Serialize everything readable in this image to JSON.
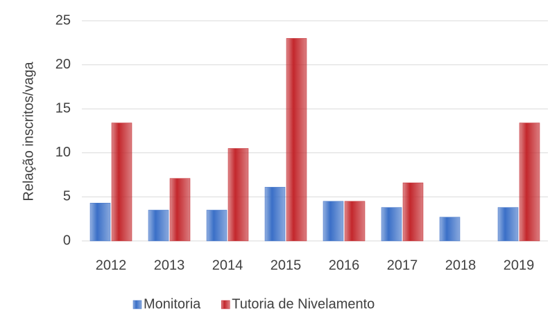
{
  "chart_data": {
    "type": "bar",
    "y_label": "Relação inscritos/vaga",
    "categories": [
      "2012",
      "2013",
      "2014",
      "2015",
      "2016",
      "2017",
      "2018",
      "2019"
    ],
    "series": [
      {
        "name": "Monitoria",
        "color": "#3a6fc7",
        "values": [
          4.3,
          3.5,
          3.5,
          6.1,
          4.5,
          3.8,
          2.7,
          3.8
        ]
      },
      {
        "name": "Tutoria de Nivelamento",
        "color": "#c3272c",
        "values": [
          13.4,
          7.1,
          10.5,
          23.0,
          4.5,
          6.6,
          null,
          13.4
        ]
      }
    ],
    "ylim": [
      0,
      25
    ],
    "yticks": [
      0,
      5,
      10,
      15,
      20,
      25
    ],
    "grid": true,
    "legend": "bottom"
  }
}
